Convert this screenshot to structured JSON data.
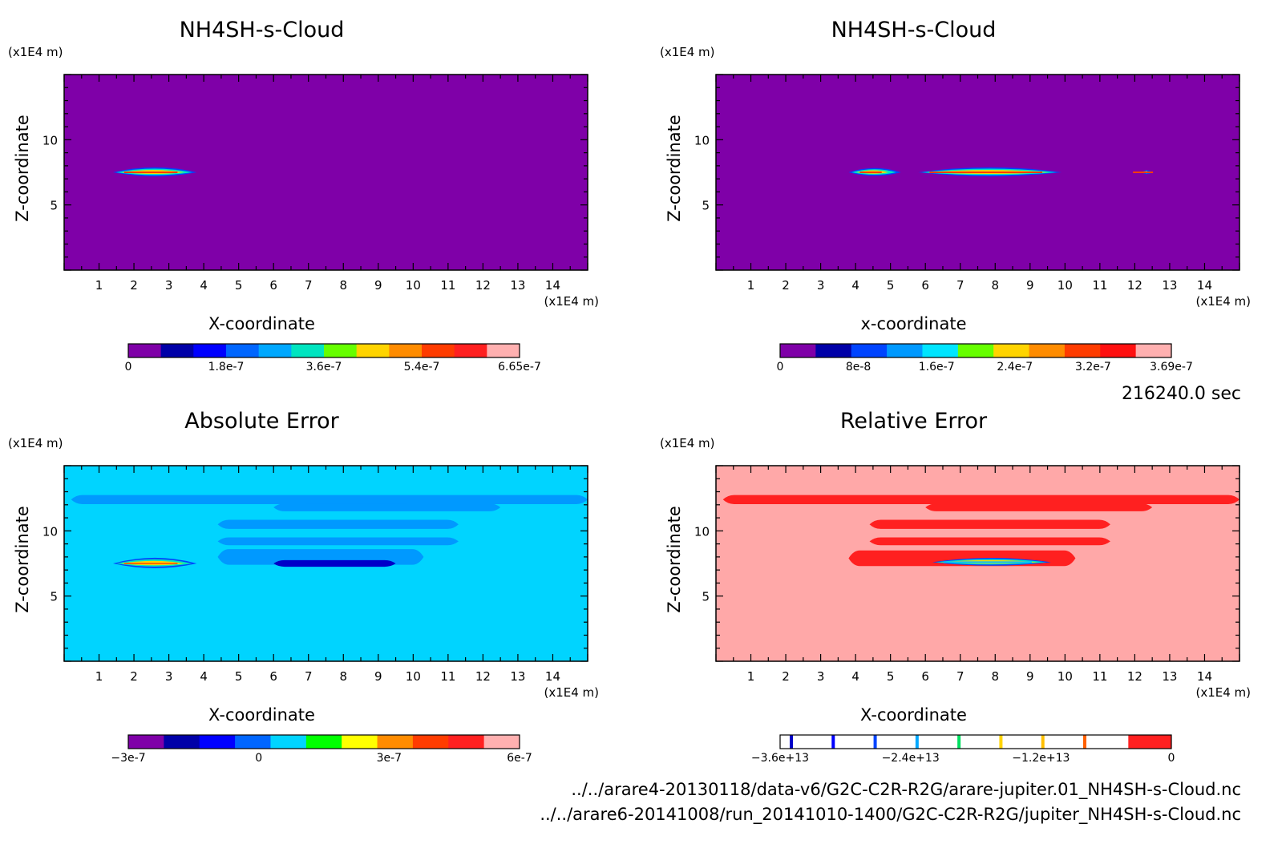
{
  "time_label": "216240.0 sec",
  "footer": {
    "file1": "../../arare4-20130118/data-v6/G2C-C2R-R2G/arare-jupiter.01_NH4SH-s-Cloud.nc",
    "file2": "../../arare6-20141008/run_20141010-1400/G2C-C2R-R2G/jupiter_NH4SH-s-Cloud.nc"
  },
  "chart_data": [
    {
      "type": "heatmap",
      "title": "NH4SH-s-Cloud",
      "xlabel": "X-coordinate",
      "ylabel": "Z-coordinate",
      "x_unit": "(x1E4 m)",
      "y_unit": "(x1E4 m)",
      "xlim": [
        0,
        15
      ],
      "ylim": [
        0,
        15
      ],
      "xticks": [
        "1",
        "2",
        "3",
        "4",
        "5",
        "6",
        "7",
        "8",
        "9",
        "10",
        "11",
        "12",
        "13",
        "14"
      ],
      "yticks": [
        "5",
        "10"
      ],
      "background": "#7f00a8",
      "features": [
        {
          "kind": "lens",
          "x": [
            1.4,
            3.8
          ],
          "z": 7.5,
          "thickness": 0.35
        }
      ],
      "colorbar": {
        "colors": [
          "#7f00a8",
          "#0000a8",
          "#0000ff",
          "#0066ff",
          "#00a8ff",
          "#00e5c0",
          "#66ff00",
          "#ffd400",
          "#ff8c00",
          "#ff3c00",
          "#ff2020",
          "#ffb0b0"
        ],
        "ticklabels": [
          "0",
          "1.8e-7",
          "3.6e-7",
          "5.4e-7",
          "6.65e-7"
        ]
      }
    },
    {
      "type": "heatmap",
      "title": "NH4SH-s-Cloud",
      "xlabel": "x-coordinate",
      "ylabel": "Z-coordinate",
      "x_unit": "(x1E4 m)",
      "y_unit": "(x1E4 m)",
      "xlim": [
        0,
        15
      ],
      "ylim": [
        0,
        15
      ],
      "xticks": [
        "1",
        "2",
        "3",
        "4",
        "5",
        "6",
        "7",
        "8",
        "9",
        "10",
        "11",
        "12",
        "13",
        "14"
      ],
      "yticks": [
        "5",
        "10"
      ],
      "background": "#7f00a8",
      "features": [
        {
          "kind": "lens",
          "x": [
            3.8,
            5.3
          ],
          "z": 7.5,
          "thickness": 0.3
        },
        {
          "kind": "lens",
          "x": [
            5.8,
            9.9
          ],
          "z": 7.5,
          "thickness": 0.35
        },
        {
          "kind": "lens",
          "x": [
            12.2,
            12.5
          ],
          "z": 7.5,
          "thickness": 0.15
        }
      ],
      "colorbar": {
        "colors": [
          "#7f00a8",
          "#0000a8",
          "#0044ff",
          "#0099ff",
          "#00e5ff",
          "#66ff00",
          "#ffd400",
          "#ff8c00",
          "#ff3c00",
          "#ff1010",
          "#ffb0b0"
        ],
        "ticklabels": [
          "0",
          "8e-8",
          "1.6e-7",
          "2.4e-7",
          "3.2e-7",
          "3.69e-7"
        ]
      }
    },
    {
      "type": "heatmap",
      "title": "Absolute Error",
      "xlabel": "X-coordinate",
      "ylabel": "Z-coordinate",
      "x_unit": "(x1E4 m)",
      "y_unit": "(x1E4 m)",
      "xlim": [
        0,
        15
      ],
      "ylim": [
        0,
        15
      ],
      "xticks": [
        "1",
        "2",
        "3",
        "4",
        "5",
        "6",
        "7",
        "8",
        "9",
        "10",
        "11",
        "12",
        "13",
        "14"
      ],
      "yticks": [
        "5",
        "10"
      ],
      "background": "#00d4ff",
      "features": [
        {
          "kind": "band",
          "x": [
            0.2,
            15
          ],
          "z": 12.4,
          "thickness": 0.35,
          "color": "#0099ff"
        },
        {
          "kind": "band",
          "x": [
            6,
            12.5
          ],
          "z": 11.8,
          "thickness": 0.3,
          "color": "#0099ff"
        },
        {
          "kind": "band",
          "x": [
            4.4,
            11.3
          ],
          "z": 10.5,
          "thickness": 0.35,
          "color": "#0099ff"
        },
        {
          "kind": "band",
          "x": [
            4.4,
            11.3
          ],
          "z": 9.2,
          "thickness": 0.3,
          "color": "#0099ff"
        },
        {
          "kind": "band",
          "x": [
            4.4,
            10.3
          ],
          "z": 8.0,
          "thickness": 0.6,
          "color": "#0099ff"
        },
        {
          "kind": "band",
          "x": [
            6,
            9.5
          ],
          "z": 7.5,
          "thickness": 0.25,
          "color": "#0000c8"
        },
        {
          "kind": "lens",
          "x": [
            1.4,
            3.8
          ],
          "z": 7.5,
          "thickness": 0.4,
          "color": "#ff6a00"
        }
      ],
      "colorbar": {
        "colors": [
          "#7f00a8",
          "#0000a8",
          "#0000ff",
          "#0066ff",
          "#00d4ff",
          "#00ff00",
          "#ffff00",
          "#ff8c00",
          "#ff3c00",
          "#ff2020",
          "#ffb0b0"
        ],
        "ticklabels": [
          "−3e-7",
          "0",
          "3e-7",
          "6e-7"
        ]
      }
    },
    {
      "type": "heatmap",
      "title": "Relative Error",
      "xlabel": "X-coordinate",
      "ylabel": "Z-coordinate",
      "x_unit": "(x1E4 m)",
      "y_unit": "(x1E4 m)",
      "xlim": [
        0,
        15
      ],
      "ylim": [
        0,
        15
      ],
      "xticks": [
        "1",
        "2",
        "3",
        "4",
        "5",
        "6",
        "7",
        "8",
        "9",
        "10",
        "11",
        "12",
        "13",
        "14"
      ],
      "yticks": [
        "5",
        "10"
      ],
      "background": "#ffa8a8",
      "features": [
        {
          "kind": "band",
          "x": [
            0.2,
            15
          ],
          "z": 12.4,
          "thickness": 0.35,
          "color": "#ff2020"
        },
        {
          "kind": "band",
          "x": [
            6,
            12.5
          ],
          "z": 11.8,
          "thickness": 0.3,
          "color": "#ff2020"
        },
        {
          "kind": "band",
          "x": [
            4.4,
            11.3
          ],
          "z": 10.5,
          "thickness": 0.35,
          "color": "#ff2020"
        },
        {
          "kind": "band",
          "x": [
            4.4,
            11.3
          ],
          "z": 9.2,
          "thickness": 0.3,
          "color": "#ff2020"
        },
        {
          "kind": "band",
          "x": [
            3.8,
            10.3
          ],
          "z": 7.9,
          "thickness": 0.6,
          "color": "#ff2020"
        },
        {
          "kind": "lens",
          "x": [
            6.2,
            9.6
          ],
          "z": 7.6,
          "thickness": 0.3,
          "color": "#00c0ff"
        }
      ],
      "colorbar": {
        "colors": [
          "#ffffff",
          "#ff2020"
        ],
        "lines": [
          "#0000c8",
          "#0000ff",
          "#0044ff",
          "#00a8ff",
          "#00e060",
          "#ffd400",
          "#ffc000",
          "#ff6000"
        ],
        "ticklabels": [
          "−3.6e+13",
          "−2.4e+13",
          "−1.2e+13",
          "0"
        ]
      }
    }
  ]
}
